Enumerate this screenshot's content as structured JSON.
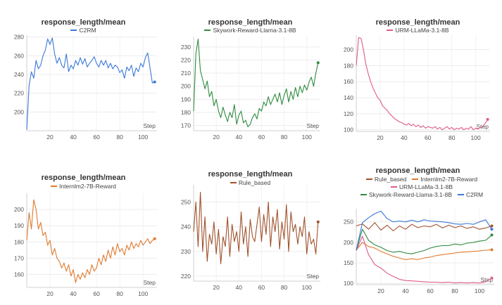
{
  "chart_data": [
    {
      "type": "line",
      "title": "response_length/mean",
      "xlabel": "Step",
      "xlim": [
        0,
        112
      ],
      "ylim": [
        180,
        282
      ],
      "xticks": [
        20,
        40,
        60,
        80,
        100
      ],
      "yticks": [
        200,
        220,
        240,
        260,
        280
      ],
      "series": [
        {
          "name": "C2RM",
          "color": "#3b78d8",
          "x": [
            0,
            2,
            4,
            6,
            8,
            10,
            12,
            14,
            16,
            18,
            20,
            22,
            24,
            26,
            28,
            30,
            32,
            34,
            36,
            38,
            40,
            42,
            44,
            46,
            48,
            50,
            52,
            54,
            56,
            58,
            60,
            62,
            64,
            66,
            68,
            70,
            72,
            74,
            76,
            78,
            80,
            82,
            84,
            86,
            88,
            90,
            92,
            94,
            96,
            98,
            100,
            102,
            104,
            106,
            108,
            110
          ],
          "y": [
            181,
            228,
            243,
            236,
            255,
            246,
            250,
            260,
            266,
            278,
            272,
            279,
            262,
            252,
            258,
            250,
            247,
            262,
            243,
            250,
            246,
            255,
            250,
            258,
            251,
            257,
            248,
            252,
            255,
            259,
            252,
            248,
            255,
            250,
            255,
            247,
            252,
            246,
            250,
            248,
            242,
            245,
            236,
            248,
            244,
            250,
            238,
            247,
            243,
            252,
            248,
            258,
            263,
            247,
            231,
            232
          ]
        }
      ]
    },
    {
      "type": "line",
      "title": "response_length/mean",
      "xlabel": "Step",
      "xlim": [
        0,
        112
      ],
      "ylim": [
        166,
        238
      ],
      "xticks": [
        20,
        40,
        60,
        80,
        100
      ],
      "yticks": [
        170,
        180,
        190,
        200,
        210,
        220,
        230
      ],
      "series": [
        {
          "name": "Skywork-Reward-Llama-3.1-8B",
          "color": "#2e8b3e",
          "x": [
            0,
            2,
            4,
            6,
            8,
            10,
            12,
            14,
            16,
            18,
            20,
            22,
            24,
            26,
            28,
            30,
            32,
            34,
            36,
            38,
            40,
            42,
            44,
            46,
            48,
            50,
            52,
            54,
            56,
            58,
            60,
            62,
            64,
            66,
            68,
            70,
            72,
            74,
            76,
            78,
            80,
            82,
            84,
            86,
            88,
            90,
            92,
            94,
            96,
            98,
            100,
            102,
            104,
            106,
            108,
            110
          ],
          "y": [
            181,
            225,
            236,
            212,
            205,
            198,
            204,
            192,
            196,
            185,
            190,
            181,
            176,
            184,
            178,
            173,
            180,
            176,
            186,
            171,
            178,
            181,
            172,
            174,
            169,
            171,
            176,
            179,
            175,
            183,
            181,
            188,
            185,
            192,
            186,
            190,
            194,
            188,
            195,
            186,
            193,
            198,
            188,
            196,
            190,
            199,
            192,
            200,
            195,
            201,
            197,
            203,
            207,
            200,
            210,
            218
          ]
        }
      ]
    },
    {
      "type": "line",
      "title": "response_length/mean",
      "xlabel": "Step",
      "xlim": [
        0,
        112
      ],
      "ylim": [
        98,
        218
      ],
      "xticks": [
        20,
        40,
        60,
        80,
        100
      ],
      "yticks": [
        100,
        120,
        140,
        160,
        180,
        200
      ],
      "series": [
        {
          "name": "URM-LLaMa-3.1-8B",
          "color": "#e05a8c",
          "x": [
            0,
            2,
            4,
            6,
            8,
            10,
            12,
            14,
            16,
            18,
            20,
            22,
            24,
            26,
            28,
            30,
            32,
            34,
            36,
            38,
            40,
            42,
            44,
            46,
            48,
            50,
            52,
            54,
            56,
            58,
            60,
            62,
            64,
            66,
            68,
            70,
            72,
            74,
            76,
            78,
            80,
            82,
            84,
            86,
            88,
            90,
            92,
            94,
            96,
            98,
            100,
            102,
            104,
            106,
            108,
            110
          ],
          "y": [
            180,
            215,
            214,
            200,
            182,
            170,
            160,
            152,
            146,
            140,
            137,
            130,
            127,
            124,
            120,
            117,
            114,
            112,
            110,
            109,
            107,
            106,
            108,
            105,
            107,
            104,
            106,
            103,
            105,
            102,
            104,
            103,
            102,
            104,
            101,
            103,
            100,
            102,
            104,
            101,
            103,
            100,
            102,
            101,
            103,
            100,
            102,
            101,
            104,
            100,
            102,
            101,
            103,
            104,
            108,
            113
          ]
        }
      ]
    },
    {
      "type": "line",
      "title": "response_length/mean",
      "xlabel": "Step",
      "xlim": [
        0,
        112
      ],
      "ylim": [
        152,
        210
      ],
      "xticks": [
        20,
        40,
        60,
        80,
        100
      ],
      "yticks": [
        160,
        170,
        180,
        190,
        200
      ],
      "series": [
        {
          "name": "Internlm2-7B-Reward",
          "color": "#e07a2e",
          "x": [
            0,
            2,
            4,
            6,
            8,
            10,
            12,
            14,
            16,
            18,
            20,
            22,
            24,
            26,
            28,
            30,
            32,
            34,
            36,
            38,
            40,
            42,
            44,
            46,
            48,
            50,
            52,
            54,
            56,
            58,
            60,
            62,
            64,
            66,
            68,
            70,
            72,
            74,
            76,
            78,
            80,
            82,
            84,
            86,
            88,
            90,
            92,
            94,
            96,
            98,
            100,
            102,
            104,
            106,
            108,
            110
          ],
          "y": [
            181,
            198,
            188,
            206,
            200,
            188,
            192,
            184,
            186,
            178,
            181,
            172,
            176,
            170,
            168,
            164,
            167,
            162,
            166,
            159,
            163,
            155,
            160,
            157,
            161,
            158,
            163,
            160,
            166,
            162,
            164,
            170,
            166,
            172,
            168,
            175,
            170,
            177,
            172,
            179,
            174,
            176,
            172,
            178,
            175,
            180,
            176,
            179,
            177,
            181,
            178,
            180,
            182,
            179,
            181,
            182
          ]
        }
      ]
    },
    {
      "type": "line",
      "title": "response_length/mean",
      "xlabel": "Step",
      "xlim": [
        0,
        112
      ],
      "ylim": [
        218,
        257
      ],
      "xticks": [
        20,
        40,
        60,
        80,
        100
      ],
      "yticks": [
        220,
        230,
        240,
        250
      ],
      "series": [
        {
          "name": "Rule_based",
          "color": "#a0522d",
          "x": [
            0,
            2,
            4,
            6,
            8,
            10,
            12,
            14,
            16,
            18,
            20,
            22,
            24,
            26,
            28,
            30,
            32,
            34,
            36,
            38,
            40,
            42,
            44,
            46,
            48,
            50,
            52,
            54,
            56,
            58,
            60,
            62,
            64,
            66,
            68,
            70,
            72,
            74,
            76,
            78,
            80,
            82,
            84,
            86,
            88,
            90,
            92,
            94,
            96,
            98,
            100,
            102,
            104,
            106,
            108,
            110
          ],
          "y": [
            238,
            250,
            232,
            254,
            230,
            244,
            226,
            237,
            233,
            242,
            229,
            239,
            225,
            236,
            232,
            244,
            228,
            241,
            234,
            238,
            230,
            246,
            233,
            240,
            228,
            243,
            236,
            234,
            241,
            248,
            234,
            245,
            237,
            250,
            232,
            244,
            238,
            247,
            231,
            242,
            235,
            249,
            230,
            246,
            238,
            241,
            233,
            240,
            236,
            244,
            229,
            238,
            233,
            235,
            229,
            242
          ]
        }
      ]
    },
    {
      "type": "line",
      "title": "response_length/mean",
      "xlabel": "Step",
      "xlim": [
        0,
        112
      ],
      "ylim": [
        97,
        282
      ],
      "xticks": [
        20,
        40,
        60,
        80,
        100
      ],
      "yticks": [
        100,
        150,
        200,
        250
      ],
      "legend": "top",
      "series": [
        {
          "name": "Rule_based",
          "color": "#a0522d",
          "x": [
            0,
            5,
            10,
            15,
            20,
            25,
            30,
            35,
            40,
            45,
            50,
            55,
            60,
            65,
            70,
            75,
            80,
            85,
            90,
            95,
            100,
            105,
            110
          ],
          "y": [
            240,
            245,
            232,
            248,
            230,
            242,
            228,
            240,
            232,
            244,
            236,
            240,
            238,
            244,
            235,
            242,
            236,
            240,
            234,
            238,
            232,
            235,
            240
          ]
        },
        {
          "name": "Internlm2-7B-Reward",
          "color": "#e07a2e",
          "x": [
            0,
            5,
            10,
            15,
            20,
            25,
            30,
            35,
            40,
            45,
            50,
            55,
            60,
            65,
            70,
            75,
            80,
            85,
            90,
            95,
            100,
            105,
            110
          ],
          "y": [
            181,
            200,
            190,
            186,
            178,
            172,
            166,
            162,
            158,
            160,
            158,
            162,
            164,
            168,
            170,
            172,
            174,
            176,
            177,
            178,
            179,
            181,
            182
          ]
        },
        {
          "name": "URM-LLaMa-3.1-8B",
          "color": "#e05a8c",
          "x": [
            0,
            5,
            10,
            15,
            20,
            25,
            30,
            35,
            40,
            45,
            50,
            55,
            60,
            65,
            70,
            75,
            80,
            85,
            90,
            95,
            100,
            105,
            110
          ],
          "y": [
            180,
            215,
            170,
            146,
            137,
            125,
            117,
            110,
            107,
            106,
            105,
            104,
            103,
            103,
            102,
            103,
            101,
            102,
            101,
            102,
            101,
            104,
            113
          ]
        },
        {
          "name": "Skywork-Reward-Llama-3.1-8B",
          "color": "#2e8b3e",
          "x": [
            0,
            5,
            10,
            15,
            20,
            25,
            30,
            35,
            40,
            45,
            50,
            55,
            60,
            65,
            70,
            75,
            80,
            85,
            90,
            95,
            100,
            105,
            110
          ],
          "y": [
            181,
            232,
            205,
            194,
            188,
            180,
            176,
            178,
            174,
            172,
            176,
            180,
            186,
            190,
            192,
            192,
            196,
            194,
            198,
            200,
            203,
            205,
            218
          ]
        },
        {
          "name": "C2RM",
          "color": "#3b78d8",
          "x": [
            0,
            5,
            10,
            15,
            20,
            25,
            30,
            35,
            40,
            45,
            50,
            55,
            60,
            65,
            70,
            75,
            80,
            85,
            90,
            95,
            100,
            105,
            110
          ],
          "y": [
            181,
            248,
            260,
            270,
            276,
            258,
            250,
            252,
            250,
            254,
            250,
            255,
            252,
            251,
            250,
            248,
            245,
            244,
            246,
            244,
            250,
            255,
            232
          ]
        }
      ]
    }
  ]
}
